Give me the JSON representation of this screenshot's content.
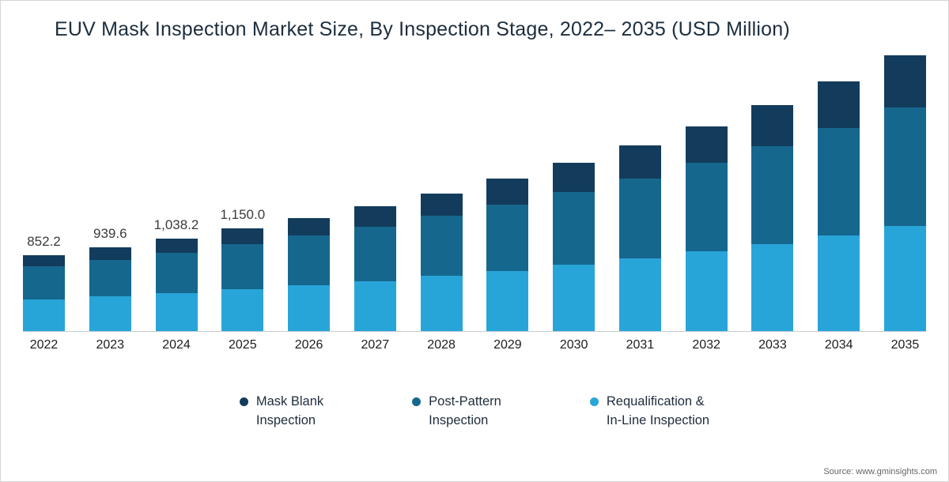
{
  "title": "EUV Mask Inspection Market Size, By Inspection Stage, 2022– 2035 (USD Million)",
  "source": "Source: www.gminsights.com",
  "chart_data": {
    "type": "bar",
    "stacked": true,
    "title": "EUV Mask Inspection Market Size, By Inspection Stage, 2022– 2035 (USD Million)",
    "value_unit": "USD Million",
    "ylim": [
      0,
      3100
    ],
    "grid": false,
    "legend_position": "bottom",
    "categories": [
      "2022",
      "2023",
      "2024",
      "2025",
      "2026",
      "2027",
      "2028",
      "2029",
      "2030",
      "2031",
      "2032",
      "2033",
      "2034",
      "2035"
    ],
    "totals": [
      852.2,
      939.6,
      1038.2,
      1150.0,
      1270,
      1400,
      1545,
      1705,
      1885,
      2080,
      2295,
      2535,
      2800,
      3090
    ],
    "data_labels": [
      "852.2",
      "939.6",
      "1,038.2",
      "1,150.0",
      "",
      "",
      "",
      "",
      "",
      "",
      "",
      "",
      "",
      ""
    ],
    "series": [
      {
        "name": "Mask Blank Inspection",
        "legend_lines": [
          "Mask Blank",
          "Inspection"
        ],
        "color": "#133c5c",
        "values": [
          123.6,
          139.5,
          157.7,
          178.7,
          201.7,
          227.2,
          256.2,
          288.5,
          325.5,
          366.5,
          412.2,
          464.1,
          522.2,
          587.1
        ]
      },
      {
        "name": "Post-Pattern Inspection",
        "legend_lines": [
          "Post-Pattern",
          "Inspection"
        ],
        "color": "#16678e",
        "values": [
          374.9,
          412.7,
          455.3,
          503.4,
          555.0,
          610.7,
          672.7,
          741.0,
          817.8,
          900.6,
          992.1,
          1093.9,
          1206.2,
          1328.7
        ]
      },
      {
        "name": "Requalification & In-Line Inspection",
        "legend_lines": [
          "Requalification &",
          "In-Line Inspection"
        ],
        "color": "#28a5d8",
        "values": [
          353.7,
          387.4,
          425.2,
          467.9,
          513.3,
          562.1,
          616.1,
          675.5,
          741.7,
          812.9,
          890.7,
          977.0,
          1071.6,
          1174.2
        ]
      }
    ]
  }
}
